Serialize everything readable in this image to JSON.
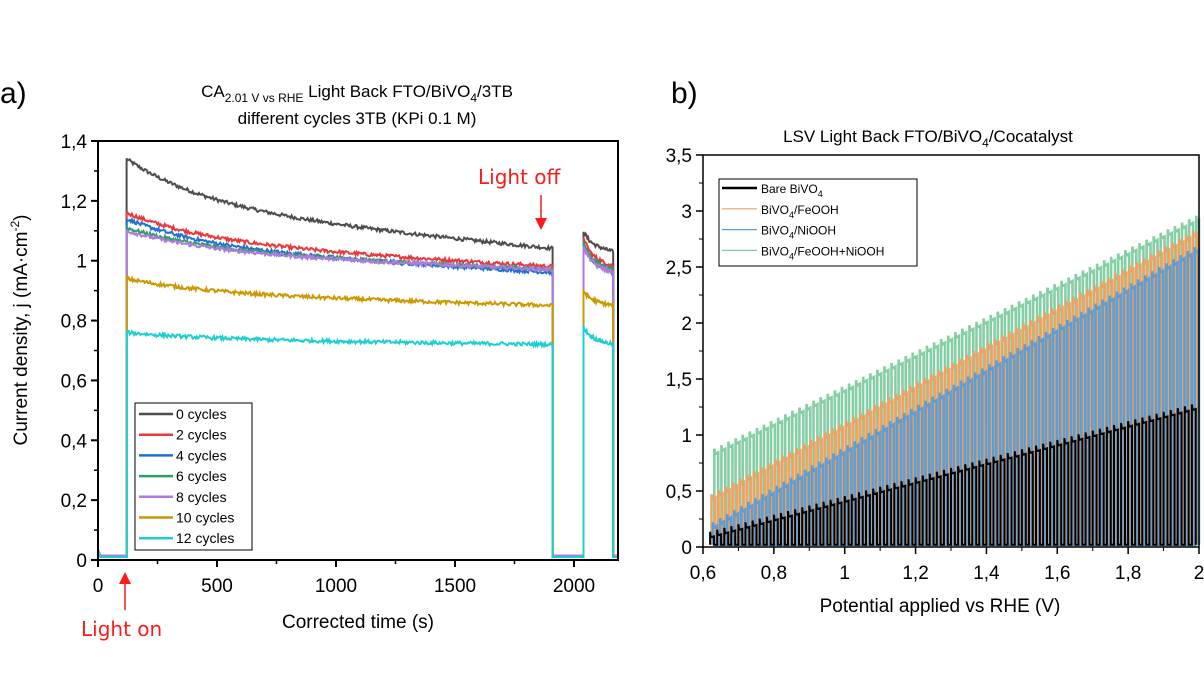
{
  "chart_data": [
    {
      "panel_label": "a)",
      "type": "line",
      "title_main": "CA",
      "title_sub": "2.01 V vs RHE",
      "title_rest": " Light Back FTO/BiVO",
      "title_sub2": "4",
      "title_end": "/3TB",
      "title_line2": "different cycles 3TB (KPi 0.1 M)",
      "xlabel": "Corrected time (s)",
      "ylabel": "Current density, j (mA·cm",
      "ylabel_sup": "-2",
      "ylabel_end": ")",
      "xlim": [
        0,
        2185
      ],
      "ylim": [
        0,
        1.4
      ],
      "xticks": [
        0,
        500,
        1000,
        1500,
        2000
      ],
      "xtick_labels": [
        "0",
        "500",
        "1000",
        "1500",
        "2000"
      ],
      "yticks": [
        0,
        0.2,
        0.4,
        0.6,
        0.8,
        1.0,
        1.2,
        1.4
      ],
      "ytick_labels": [
        "0",
        "0,2",
        "0,4",
        "0,6",
        "0,8",
        "1",
        "1,2",
        "1,4"
      ],
      "legend_position": "bottom-left",
      "light_on_time": 120,
      "light_off_time": 1910,
      "second_on_time": 2040,
      "second_off_time": 2165,
      "annotations": [
        {
          "text": "Light on",
          "x": 120,
          "color": "#ff1a1a"
        },
        {
          "text": "Light off",
          "x": 1890,
          "color": "#ff1a1a"
        }
      ],
      "series": [
        {
          "name": "0 cycles",
          "color": "#4d4d4d",
          "dark": 0.01,
          "peak": 1.34,
          "end": 1.04,
          "peak2": 1.1,
          "end2": 1.03
        },
        {
          "name": "2 cycles",
          "color": "#e8393d",
          "dark": 0.01,
          "peak": 1.16,
          "end": 0.98,
          "peak2": 1.08,
          "end2": 0.98
        },
        {
          "name": "4 cycles",
          "color": "#1f6fd6",
          "dark": 0.01,
          "peak": 1.14,
          "end": 0.96,
          "peak2": 1.06,
          "end2": 0.96
        },
        {
          "name": "6 cycles",
          "color": "#2e9e66",
          "dark": 0.01,
          "peak": 1.11,
          "end": 0.97,
          "peak2": 1.06,
          "end2": 0.97
        },
        {
          "name": "8 cycles",
          "color": "#b07ae0",
          "dark": 0.015,
          "peak": 1.1,
          "end": 0.97,
          "peak2": 1.05,
          "end2": 0.96
        },
        {
          "name": "10 cycles",
          "color": "#cc9900",
          "dark": 0.01,
          "peak": 0.94,
          "end": 0.85,
          "peak2": 0.9,
          "end2": 0.85
        },
        {
          "name": "12 cycles",
          "color": "#1ccfd0",
          "dark": 0.01,
          "peak": 0.76,
          "end": 0.72,
          "peak2": 0.78,
          "end2": 0.72
        }
      ]
    },
    {
      "panel_label": "b)",
      "type": "line",
      "title_pre": "LSV Light Back FTO/BiVO",
      "title_sub": "4",
      "title_end": "/Cocatalyst",
      "xlabel": "Potential applied vs RHE (V)",
      "ylabel": "",
      "xlim": [
        0.6,
        2.0
      ],
      "ylim": [
        0,
        3.5
      ],
      "xticks": [
        0.6,
        0.8,
        1.0,
        1.2,
        1.4,
        1.6,
        1.8,
        2.0
      ],
      "xtick_labels": [
        "0,6",
        "0,8",
        "1",
        "1,2",
        "1,4",
        "1,6",
        "1,8",
        "2"
      ],
      "yticks": [
        0,
        0.5,
        1.0,
        1.5,
        2.0,
        2.5,
        3.0,
        3.5
      ],
      "ytick_labels": [
        "0",
        "0,5",
        "1",
        "1,5",
        "2",
        "2,5",
        "3",
        "3,5"
      ],
      "legend_position": "top-left",
      "chopped_light": true,
      "series": [
        {
          "name": "Bare BiVO",
          "sub": "4",
          "suffix": "",
          "color": "#000000",
          "start": 0.07,
          "end": 1.24,
          "width": "thick"
        },
        {
          "name": "BiVO",
          "sub": "4",
          "suffix": "/FeOOH",
          "color": "#f0a060",
          "start": 0.38,
          "end": 2.8,
          "width": "thin"
        },
        {
          "name": "BiVO",
          "sub": "4",
          "suffix": "/NiOOH",
          "color": "#5b9bd5",
          "start": 0.12,
          "end": 2.65,
          "width": "thin"
        },
        {
          "name": "BiVO",
          "sub": "4",
          "suffix": "/FeOOH+NiOOH",
          "color": "#7fcca0",
          "start": 0.78,
          "end": 2.92,
          "width": "thin"
        }
      ]
    }
  ]
}
